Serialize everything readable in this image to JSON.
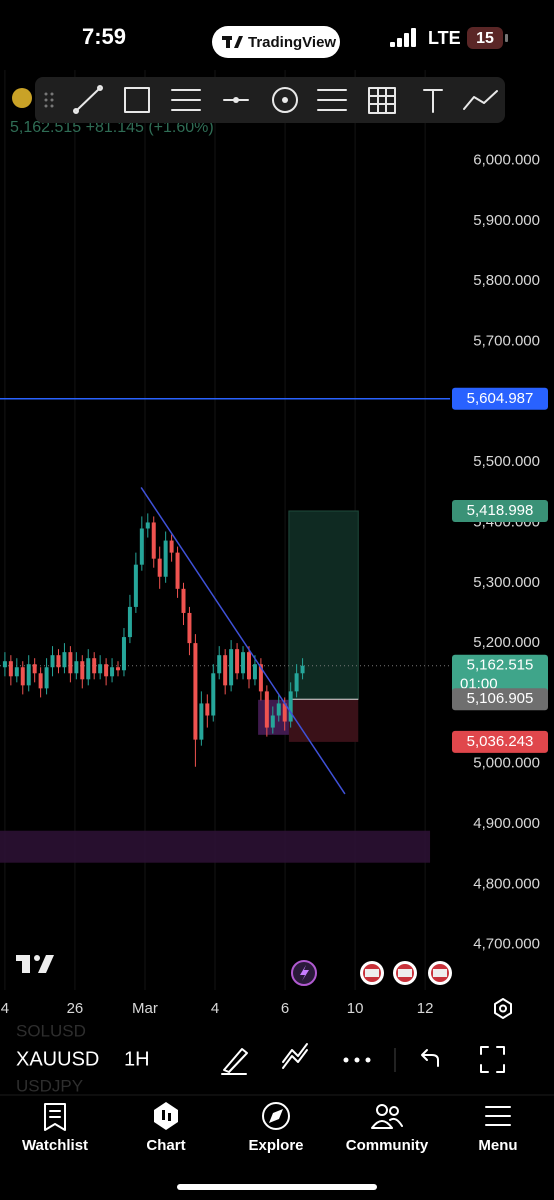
{
  "status_bar": {
    "time": "7:59",
    "app": "TradingView",
    "network": "LTE",
    "battery": "15"
  },
  "chart_data": {
    "type": "candlestick",
    "quote": "5,162.515 +81.145 (+1.60%)",
    "colors": {
      "up": "#26a69a",
      "down": "#ef5350"
    },
    "grid": "vertical",
    "x": [
      0,
      0.17,
      0.34,
      0.51,
      0.68,
      0.85,
      1.02,
      1.19,
      1.36,
      1.53,
      1.7,
      1.87,
      2.04,
      2.21,
      2.38,
      2.55,
      2.72,
      2.89,
      3.06,
      3.23,
      3.4,
      3.57,
      3.74,
      3.91,
      4.08,
      4.25,
      4.42,
      4.59,
      4.76,
      4.93,
      5.1,
      5.27,
      5.44,
      5.61,
      5.78,
      5.95,
      6.12,
      6.29,
      6.46,
      6.63,
      6.8,
      6.97,
      7.14,
      7.31,
      7.48,
      7.65,
      7.82,
      7.99,
      8.16,
      8.33,
      8.5
    ],
    "open": [
      5160,
      5170,
      5145,
      5160,
      5130,
      5165,
      5150,
      5125,
      5160,
      5180,
      5160,
      5185,
      5150,
      5170,
      5140,
      5175,
      5150,
      5165,
      5145,
      5160,
      5155,
      5210,
      5260,
      5330,
      5390,
      5400,
      5340,
      5310,
      5370,
      5350,
      5290,
      5250,
      5200,
      5040,
      5100,
      5080,
      5150,
      5180,
      5130,
      5190,
      5150,
      5185,
      5140,
      5165,
      5120,
      5060,
      5080,
      5100,
      5070,
      5120,
      5150
    ],
    "high": [
      5185,
      5180,
      5175,
      5170,
      5180,
      5175,
      5160,
      5175,
      5195,
      5190,
      5200,
      5195,
      5185,
      5180,
      5190,
      5185,
      5180,
      5175,
      5175,
      5170,
      5225,
      5280,
      5350,
      5410,
      5415,
      5410,
      5360,
      5385,
      5380,
      5360,
      5300,
      5260,
      5215,
      5120,
      5115,
      5165,
      5195,
      5190,
      5205,
      5200,
      5195,
      5195,
      5180,
      5175,
      5130,
      5095,
      5115,
      5110,
      5135,
      5165,
      5175
    ],
    "low": [
      5145,
      5130,
      5135,
      5115,
      5120,
      5135,
      5110,
      5115,
      5145,
      5150,
      5150,
      5135,
      5140,
      5125,
      5130,
      5140,
      5140,
      5130,
      5135,
      5145,
      5145,
      5200,
      5250,
      5320,
      5375,
      5325,
      5290,
      5300,
      5335,
      5275,
      5230,
      5180,
      4995,
      5030,
      5060,
      5070,
      5140,
      5115,
      5120,
      5140,
      5140,
      5125,
      5130,
      5105,
      5045,
      5050,
      5070,
      5055,
      5060,
      5110,
      5140
    ],
    "close": [
      5170,
      5145,
      5160,
      5130,
      5165,
      5150,
      5125,
      5160,
      5180,
      5160,
      5185,
      5150,
      5170,
      5140,
      5175,
      5150,
      5165,
      5145,
      5160,
      5155,
      5210,
      5260,
      5330,
      5390,
      5400,
      5340,
      5310,
      5370,
      5350,
      5290,
      5250,
      5200,
      5040,
      5100,
      5080,
      5150,
      5180,
      5130,
      5190,
      5150,
      5185,
      5140,
      5165,
      5120,
      5060,
      5080,
      5100,
      5070,
      5120,
      5150,
      5162.515
    ],
    "xlim": [
      -0.14,
      12.71
    ],
    "xticks": [
      {
        "value": 0,
        "label": "4"
      },
      {
        "value": 2,
        "label": "26"
      },
      {
        "value": 4,
        "label": "Mar"
      },
      {
        "value": 6,
        "label": "4"
      },
      {
        "value": 8,
        "label": "6"
      },
      {
        "value": 10,
        "label": "10"
      },
      {
        "value": 12,
        "label": "12"
      }
    ],
    "ylim": [
      4625,
      6150
    ],
    "yticks": [
      {
        "value": 6000,
        "label": "6,000.000"
      },
      {
        "value": 5900,
        "label": "5,900.000"
      },
      {
        "value": 5800,
        "label": "5,800.000"
      },
      {
        "value": 5700,
        "label": "5,700.000"
      },
      {
        "value": 5500,
        "label": "5,500.000"
      },
      {
        "value": 5400,
        "label": "5,400.000"
      },
      {
        "value": 5300,
        "label": "5,300.000"
      },
      {
        "value": 5200,
        "label": "5,200.000"
      },
      {
        "value": 5000,
        "label": "5,000.000"
      },
      {
        "value": 4900,
        "label": "4,900.000"
      },
      {
        "value": 4800,
        "label": "4,800.000"
      },
      {
        "value": 4700,
        "label": "4,700.000"
      }
    ],
    "price_tags": [
      {
        "value": 5604.987,
        "label": "5,604.987",
        "color": "#2962ff"
      },
      {
        "value": 5418.998,
        "label": "5,418.998",
        "color": "#3a9277"
      },
      {
        "value": 5162.515,
        "label": "5,162.515",
        "color": "#3fa58a",
        "time": "01:00"
      },
      {
        "value": 5106.905,
        "label": "5,106.905",
        "color": "#6f6f6f"
      },
      {
        "value": 5036.243,
        "label": "5,036.243",
        "color": "#e0474c"
      }
    ],
    "trendline": {
      "x": [
        3.89,
        9.71
      ],
      "y": [
        5458,
        4950
      ],
      "color": "#3f51d8"
    },
    "position": {
      "x": [
        8.11,
        10.09
      ]
    },
    "zones": [
      {
        "x": [
          7.23,
          8.2
        ],
        "y": [
          5106,
          5048
        ],
        "color": "#4a1f5c"
      },
      {
        "x": [
          -0.14,
          12.14
        ],
        "y": [
          4889,
          4836
        ],
        "color": "#2e1236"
      }
    ]
  },
  "symbol_bar": {
    "previous": "SOLUSD",
    "symbol": "XAUUSD",
    "interval": "1H",
    "next": "USDJPY"
  },
  "nav": [
    "Watchlist",
    "Chart",
    "Explore",
    "Community",
    "Menu"
  ]
}
